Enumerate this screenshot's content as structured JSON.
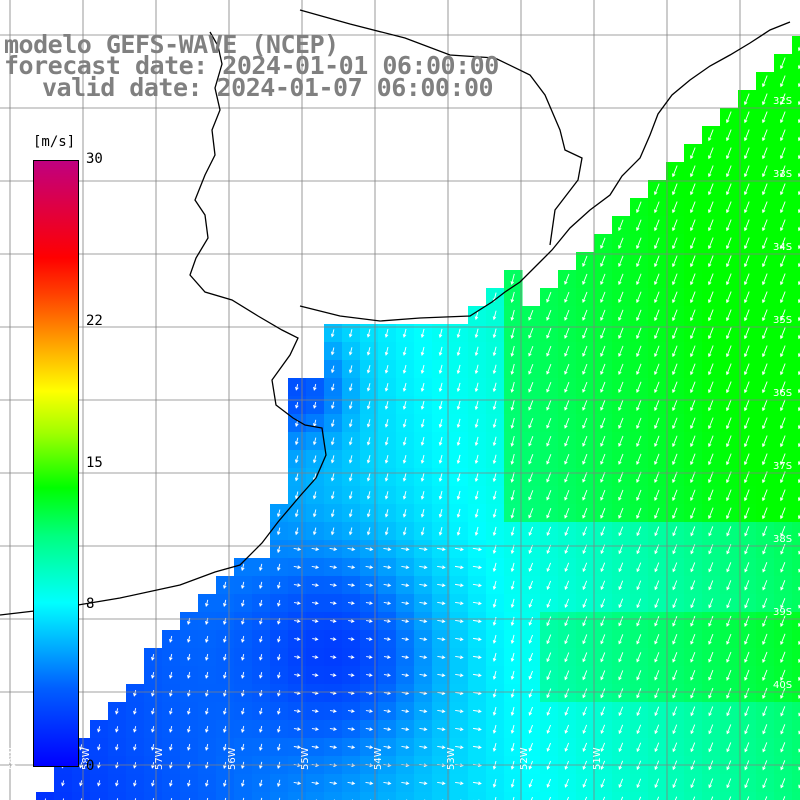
{
  "header": {
    "model": "modelo GEFS-WAVE (NCEP)",
    "forecast": "forecast date: 2024-01-01 06:00:00",
    "valid": "valid date: 2024-01-07 06:00:00"
  },
  "colorbar": {
    "unit": "[m/s]",
    "ticks": [
      {
        "label": "30",
        "value": 30
      },
      {
        "label": "22",
        "value": 22
      },
      {
        "label": "15",
        "value": 15
      },
      {
        "label": "8",
        "value": 8
      },
      {
        "label": "0",
        "value": 0
      }
    ]
  },
  "map": {
    "lat_labels": [
      "32S",
      "33S",
      "34S",
      "35S",
      "36S",
      "37S",
      "38S",
      "39S",
      "40S"
    ],
    "lon_labels": [
      "59W",
      "58W",
      "57W",
      "56W",
      "55W",
      "54W",
      "53W",
      "52W",
      "51W"
    ],
    "colors": {
      "ocean_low": "#0000ff",
      "ocean_mid": "#00ffff",
      "ocean_high": "#00ff00",
      "land": "#ffffff",
      "grid": "#808080",
      "arrow": "#ffffff"
    }
  }
}
